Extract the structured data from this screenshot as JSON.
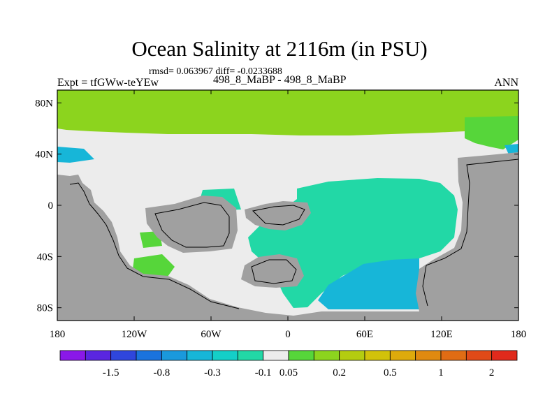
{
  "header": {
    "title": "Ocean Salinity at 2116m (in PSU)",
    "stats": "rmsd= 0.063967 diff= -0.0233688",
    "experiment": "Expt = tfGWw-teYEw",
    "runs": "498_8_MaBP - 498_8_MaBP",
    "season": "ANN"
  },
  "chart_data": {
    "type": "heatmap",
    "title": "Ocean Salinity at 2116m (in PSU)",
    "subtitle": "rmsd= 0.063967 diff= -0.0233688",
    "units": "PSU",
    "xlim": [
      -180,
      180
    ],
    "ylim": [
      -90,
      90
    ],
    "x_ticks": [
      {
        "value": -180,
        "label": "180"
      },
      {
        "value": -120,
        "label": "120W"
      },
      {
        "value": -60,
        "label": "60W"
      },
      {
        "value": 0,
        "label": "0"
      },
      {
        "value": 60,
        "label": "60E"
      },
      {
        "value": 120,
        "label": "120E"
      },
      {
        "value": 180,
        "label": "180"
      }
    ],
    "y_ticks": [
      {
        "value": 80,
        "label": "80N"
      },
      {
        "value": 40,
        "label": "40N"
      },
      {
        "value": 0,
        "label": "0"
      },
      {
        "value": -40,
        "label": "40S"
      },
      {
        "value": -80,
        "label": "80S"
      }
    ],
    "colorbar": {
      "colors": [
        "#8a18e8",
        "#5a26e0",
        "#2f46dc",
        "#1a73de",
        "#1a99dc",
        "#17b6d8",
        "#14cfc8",
        "#22d8a6",
        "#ececec",
        "#56d63a",
        "#8cd41e",
        "#b4cc10",
        "#d2c20a",
        "#deaa0c",
        "#e08a10",
        "#e06c14",
        "#e04a18",
        "#e02a1c"
      ],
      "labels": [
        {
          "after_index": 1,
          "label": "-1.5"
        },
        {
          "after_index": 3,
          "label": "-0.8"
        },
        {
          "after_index": 5,
          "label": "-0.3"
        },
        {
          "after_index": 7,
          "label": "-0.1"
        },
        {
          "after_index": 8,
          "label": "0.05"
        },
        {
          "after_index": 10,
          "label": "0.2"
        },
        {
          "after_index": 12,
          "label": "0.5"
        },
        {
          "after_index": 14,
          "label": "1"
        },
        {
          "after_index": 16,
          "label": "2"
        }
      ]
    },
    "land_color": "#a0a0a0"
  }
}
